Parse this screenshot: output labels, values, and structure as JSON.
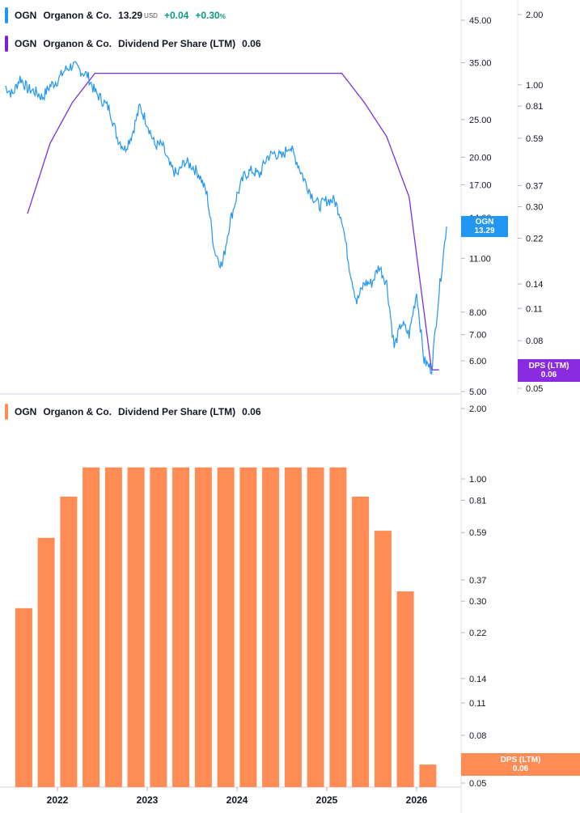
{
  "legend_price": {
    "ticker": "OGN",
    "name": "Organon & Co.",
    "price": "13.29",
    "currency": "USD",
    "change": "+0.04",
    "change_pct": "+0.30",
    "pct_sign": "%",
    "color": "#2196f3"
  },
  "legend_dps_top": {
    "ticker": "OGN",
    "name": "Organon & Co.",
    "metric": "Dividend Per Share (LTM)",
    "value": "0.06",
    "color": "#7c1fd4"
  },
  "legend_dps_bottom": {
    "ticker": "OGN",
    "name": "Organon & Co.",
    "metric": "Dividend Per Share (LTM)",
    "value": "0.06",
    "color": "#ff8c55"
  },
  "tags": {
    "price_tag_line1": "OGN",
    "price_tag_line2": "13.29",
    "dps_tag_top_line1": "DPS (LTM)",
    "dps_tag_top_line2": "0.06",
    "dps_tag_bottom_line1": "DPS (LTM)",
    "dps_tag_bottom_line2": "0.06"
  },
  "colors": {
    "price_line": "#2196f3",
    "dps_line": "#7b2ee0",
    "bars": "#ff8c55",
    "price_tag": "#2196f3",
    "dps_tag_top": "#8a2be2",
    "dps_tag_bottom": "#ff8c55"
  },
  "chart_data": [
    {
      "type": "line",
      "log_scale": true,
      "x_ticks": [
        "2022",
        "2023",
        "2024",
        "2025",
        "2026"
      ],
      "price_axis_ticks": [
        "45.00",
        "35.00",
        "25.00",
        "20.00",
        "17.00",
        "14.00",
        "11.00",
        "8.00",
        "7.00",
        "6.00",
        "5.00"
      ],
      "dps_axis_ticks": [
        "2.00",
        "1.00",
        "0.81",
        "0.59",
        "0.37",
        "0.30",
        "0.22",
        "0.14",
        "0.11",
        "0.08",
        "0.05"
      ],
      "series": [
        {
          "name": "OGN",
          "axis": "price",
          "points": [
            [
              "2021-06",
              30.5
            ],
            [
              "2021-07",
              29.0
            ],
            [
              "2021-08",
              32.0
            ],
            [
              "2021-09",
              30.0
            ],
            [
              "2021-10",
              29.5
            ],
            [
              "2021-11",
              28.5
            ],
            [
              "2021-12",
              30.5
            ],
            [
              "2022-01",
              31.5
            ],
            [
              "2022-02",
              33.5
            ],
            [
              "2022-03",
              34.5
            ],
            [
              "2022-04",
              33.5
            ],
            [
              "2022-05",
              32.5
            ],
            [
              "2022-06",
              29.5
            ],
            [
              "2022-07",
              28.0
            ],
            [
              "2022-08",
              26.5
            ],
            [
              "2022-09",
              22.5
            ],
            [
              "2022-10",
              21.0
            ],
            [
              "2022-11",
              23.0
            ],
            [
              "2022-12",
              27.0
            ],
            [
              "2023-01",
              24.5
            ],
            [
              "2023-02",
              21.5
            ],
            [
              "2023-03",
              21.5
            ],
            [
              "2023-04",
              19.0
            ],
            [
              "2023-05",
              18.0
            ],
            [
              "2023-06",
              19.5
            ],
            [
              "2023-07",
              19.0
            ],
            [
              "2023-08",
              18.0
            ],
            [
              "2023-09",
              16.0
            ],
            [
              "2023-10",
              11.5
            ],
            [
              "2023-11",
              10.5
            ],
            [
              "2023-12",
              13.5
            ],
            [
              "2024-01",
              16.0
            ],
            [
              "2024-02",
              18.0
            ],
            [
              "2024-03",
              18.5
            ],
            [
              "2024-04",
              18.0
            ],
            [
              "2024-05",
              20.0
            ],
            [
              "2024-06",
              20.5
            ],
            [
              "2024-07",
              20.0
            ],
            [
              "2024-08",
              21.5
            ],
            [
              "2024-09",
              19.5
            ],
            [
              "2024-10",
              17.5
            ],
            [
              "2024-11",
              16.0
            ],
            [
              "2024-12",
              15.0
            ],
            [
              "2025-01",
              15.5
            ],
            [
              "2025-02",
              15.5
            ],
            [
              "2025-03",
              14.0
            ],
            [
              "2025-04",
              10.5
            ],
            [
              "2025-05",
              8.5
            ],
            [
              "2025-06",
              9.5
            ],
            [
              "2025-07",
              9.5
            ],
            [
              "2025-08",
              10.5
            ],
            [
              "2025-09",
              9.5
            ],
            [
              "2025-10",
              6.5
            ],
            [
              "2025-11",
              7.5
            ],
            [
              "2025-12",
              7.0
            ],
            [
              "2026-01",
              9.0
            ],
            [
              "2026-02",
              6.0
            ],
            [
              "2026-03",
              5.7
            ],
            [
              "2026-04",
              9.0
            ],
            [
              "2026-05",
              13.29
            ]
          ]
        },
        {
          "name": "Dividend Per Share (LTM)",
          "axis": "dps",
          "points": [
            [
              "2021-09",
              0.28
            ],
            [
              "2021-12",
              0.56
            ],
            [
              "2022-03",
              0.84
            ],
            [
              "2022-06",
              1.12
            ],
            [
              "2025-03",
              1.12
            ],
            [
              "2025-06",
              0.84
            ],
            [
              "2025-09",
              0.6
            ],
            [
              "2025-12",
              0.33
            ],
            [
              "2026-03",
              0.06
            ],
            [
              "2026-04",
              0.06
            ]
          ]
        }
      ]
    },
    {
      "type": "bar",
      "log_scale": true,
      "x_ticks": [
        "2022",
        "2023",
        "2024",
        "2025",
        "2026"
      ],
      "dps_axis_ticks": [
        "2.00",
        "1.00",
        "0.81",
        "0.59",
        "0.37",
        "0.30",
        "0.22",
        "0.14",
        "0.11",
        "0.08",
        "0.05"
      ],
      "series": [
        {
          "name": "Dividend Per Share (LTM)",
          "points": [
            [
              "2021-Q3",
              0.28
            ],
            [
              "2021-Q4",
              0.56
            ],
            [
              "2022-Q1",
              0.84
            ],
            [
              "2022-Q2",
              1.12
            ],
            [
              "2022-Q3",
              1.12
            ],
            [
              "2022-Q4",
              1.12
            ],
            [
              "2023-Q1",
              1.12
            ],
            [
              "2023-Q2",
              1.12
            ],
            [
              "2023-Q3",
              1.12
            ],
            [
              "2023-Q4",
              1.12
            ],
            [
              "2024-Q1",
              1.12
            ],
            [
              "2024-Q2",
              1.12
            ],
            [
              "2024-Q3",
              1.12
            ],
            [
              "2024-Q4",
              1.12
            ],
            [
              "2025-Q1",
              1.12
            ],
            [
              "2025-Q2",
              0.84
            ],
            [
              "2025-Q3",
              0.6
            ],
            [
              "2025-Q4",
              0.33
            ],
            [
              "2026-Q1",
              0.06
            ]
          ]
        }
      ]
    }
  ]
}
